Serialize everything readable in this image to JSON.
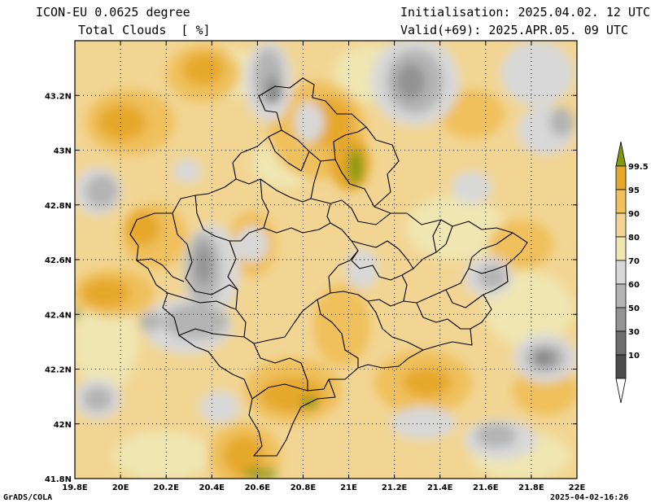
{
  "header": {
    "model": "ICON-EU 0.0625 degree",
    "variable": "Total Clouds  [ %]",
    "init": "Initialisation: 2025.04.02. 12 UTC",
    "valid": "Valid(+69): 2025.APR.05. 09 UTC"
  },
  "footer": {
    "credit": "GrADS/COLA",
    "timestamp": "2025-04-02-16:26"
  },
  "map": {
    "lon_range": [
      19.8,
      22.0
    ],
    "lat_range": [
      41.8,
      43.4
    ],
    "lon_ticks": [
      "19.8E",
      "20E",
      "20.2E",
      "20.4E",
      "20.6E",
      "20.8E",
      "21E",
      "21.2E",
      "21.4E",
      "21.6E",
      "21.8E",
      "22E"
    ],
    "lat_ticks": [
      "41.8N",
      "42N",
      "42.2N",
      "42.4N",
      "42.6N",
      "42.8N",
      "43N",
      "43.2N"
    ],
    "grid": "dotted"
  },
  "colorbar": {
    "labels": [
      "99.5",
      "95",
      "90",
      "80",
      "70",
      "60",
      "50",
      "30",
      "10"
    ],
    "colors": [
      "#7f9a0e",
      "#e6a82a",
      "#efc05c",
      "#f2d593",
      "#f0e6b2",
      "#d8d8d8",
      "#b4b4b4",
      "#939393",
      "#6e6e6e",
      "#4c4c4c",
      "#ffffff"
    ]
  }
}
